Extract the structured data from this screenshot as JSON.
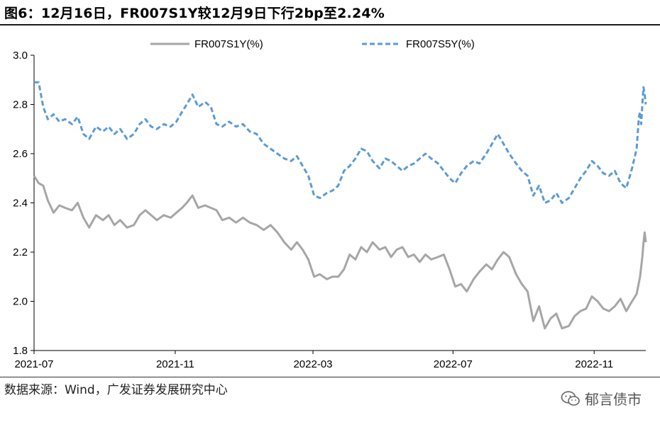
{
  "header": {
    "title": "图6：12月16日，FR007S1Y较12月9日下行2bp至2.24%"
  },
  "footer": {
    "source": "数据来源：Wind，广发证券发展研究中心",
    "watermark_text": "郁言债市",
    "watermark_icon": "wechat-icon"
  },
  "chart_data": {
    "type": "line",
    "title": "图6：12月16日，FR007S1Y较12月9日下行2bp至2.24%",
    "xlabel": "",
    "ylabel": "",
    "x_ticks": [
      "2021-07",
      "2021-11",
      "2022-03",
      "2022-07",
      "2022-11"
    ],
    "y_ticks": [
      "1.8",
      "2.0",
      "2.2",
      "2.4",
      "2.6",
      "2.8",
      "3.0"
    ],
    "ylim": [
      1.8,
      3.0
    ],
    "xlim": [
      "2021-07-01",
      "2022-12-16"
    ],
    "legend_position": "top",
    "grid": false,
    "series": [
      {
        "name": "FR007S1Y(%)",
        "color": "#a6a6a6",
        "style": "solid",
        "points": [
          [
            "2021-07-01",
            2.51
          ],
          [
            "2021-07-05",
            2.48
          ],
          [
            "2021-07-09",
            2.47
          ],
          [
            "2021-07-13",
            2.41
          ],
          [
            "2021-07-18",
            2.36
          ],
          [
            "2021-07-23",
            2.39
          ],
          [
            "2021-07-28",
            2.38
          ],
          [
            "2021-08-03",
            2.37
          ],
          [
            "2021-08-08",
            2.4
          ],
          [
            "2021-08-13",
            2.34
          ],
          [
            "2021-08-18",
            2.3
          ],
          [
            "2021-08-24",
            2.35
          ],
          [
            "2021-08-30",
            2.33
          ],
          [
            "2021-09-04",
            2.35
          ],
          [
            "2021-09-09",
            2.31
          ],
          [
            "2021-09-14",
            2.33
          ],
          [
            "2021-09-20",
            2.3
          ],
          [
            "2021-09-26",
            2.31
          ],
          [
            "2021-10-01",
            2.35
          ],
          [
            "2021-10-06",
            2.37
          ],
          [
            "2021-10-11",
            2.35
          ],
          [
            "2021-10-16",
            2.33
          ],
          [
            "2021-10-22",
            2.35
          ],
          [
            "2021-10-28",
            2.34
          ],
          [
            "2021-11-02",
            2.36
          ],
          [
            "2021-11-07",
            2.38
          ],
          [
            "2021-11-11",
            2.4
          ],
          [
            "2021-11-16",
            2.43
          ],
          [
            "2021-11-21",
            2.38
          ],
          [
            "2021-11-27",
            2.39
          ],
          [
            "2021-12-02",
            2.38
          ],
          [
            "2021-12-07",
            2.37
          ],
          [
            "2021-12-12",
            2.33
          ],
          [
            "2021-12-18",
            2.34
          ],
          [
            "2021-12-24",
            2.32
          ],
          [
            "2021-12-30",
            2.34
          ],
          [
            "2022-01-05",
            2.32
          ],
          [
            "2022-01-11",
            2.31
          ],
          [
            "2022-01-17",
            2.29
          ],
          [
            "2022-01-23",
            2.31
          ],
          [
            "2022-01-29",
            2.28
          ],
          [
            "2022-02-04",
            2.24
          ],
          [
            "2022-02-10",
            2.21
          ],
          [
            "2022-02-15",
            2.24
          ],
          [
            "2022-02-20",
            2.21
          ],
          [
            "2022-02-25",
            2.17
          ],
          [
            "2022-03-02",
            2.1
          ],
          [
            "2022-03-07",
            2.11
          ],
          [
            "2022-03-13",
            2.09
          ],
          [
            "2022-03-18",
            2.1
          ],
          [
            "2022-03-23",
            2.1
          ],
          [
            "2022-03-28",
            2.13
          ],
          [
            "2022-04-02",
            2.19
          ],
          [
            "2022-04-07",
            2.17
          ],
          [
            "2022-04-12",
            2.22
          ],
          [
            "2022-04-17",
            2.2
          ],
          [
            "2022-04-22",
            2.24
          ],
          [
            "2022-04-28",
            2.21
          ],
          [
            "2022-05-03",
            2.22
          ],
          [
            "2022-05-08",
            2.18
          ],
          [
            "2022-05-13",
            2.21
          ],
          [
            "2022-05-18",
            2.22
          ],
          [
            "2022-05-23",
            2.18
          ],
          [
            "2022-05-28",
            2.19
          ],
          [
            "2022-06-02",
            2.16
          ],
          [
            "2022-06-07",
            2.19
          ],
          [
            "2022-06-12",
            2.17
          ],
          [
            "2022-06-18",
            2.18
          ],
          [
            "2022-06-23",
            2.19
          ],
          [
            "2022-06-28",
            2.13
          ],
          [
            "2022-07-03",
            2.06
          ],
          [
            "2022-07-08",
            2.07
          ],
          [
            "2022-07-13",
            2.04
          ],
          [
            "2022-07-19",
            2.09
          ],
          [
            "2022-07-24",
            2.12
          ],
          [
            "2022-07-30",
            2.15
          ],
          [
            "2022-08-04",
            2.13
          ],
          [
            "2022-08-09",
            2.17
          ],
          [
            "2022-08-14",
            2.2
          ],
          [
            "2022-08-19",
            2.18
          ],
          [
            "2022-08-25",
            2.11
          ],
          [
            "2022-08-30",
            2.07
          ],
          [
            "2022-09-04",
            2.04
          ],
          [
            "2022-09-09",
            1.92
          ],
          [
            "2022-09-14",
            1.98
          ],
          [
            "2022-09-19",
            1.89
          ],
          [
            "2022-09-24",
            1.93
          ],
          [
            "2022-09-29",
            1.95
          ],
          [
            "2022-10-04",
            1.89
          ],
          [
            "2022-10-10",
            1.9
          ],
          [
            "2022-10-15",
            1.94
          ],
          [
            "2022-10-20",
            1.96
          ],
          [
            "2022-10-25",
            1.97
          ],
          [
            "2022-10-30",
            2.02
          ],
          [
            "2022-11-04",
            2.0
          ],
          [
            "2022-11-09",
            1.97
          ],
          [
            "2022-11-14",
            1.96
          ],
          [
            "2022-11-19",
            1.98
          ],
          [
            "2022-11-24",
            2.01
          ],
          [
            "2022-11-29",
            1.96
          ],
          [
            "2022-12-04",
            2.0
          ],
          [
            "2022-12-08",
            2.03
          ],
          [
            "2022-12-11",
            2.1
          ],
          [
            "2022-12-13",
            2.18
          ],
          [
            "2022-12-14",
            2.24
          ],
          [
            "2022-12-15",
            2.28
          ],
          [
            "2022-12-16",
            2.24
          ]
        ]
      },
      {
        "name": "FR007S5Y(%)",
        "color": "#5b9bd5",
        "style": "dashed",
        "points": [
          [
            "2021-07-01",
            2.89
          ],
          [
            "2021-07-05",
            2.89
          ],
          [
            "2021-07-09",
            2.79
          ],
          [
            "2021-07-13",
            2.74
          ],
          [
            "2021-07-18",
            2.76
          ],
          [
            "2021-07-23",
            2.73
          ],
          [
            "2021-07-28",
            2.74
          ],
          [
            "2021-08-03",
            2.72
          ],
          [
            "2021-08-08",
            2.75
          ],
          [
            "2021-08-13",
            2.68
          ],
          [
            "2021-08-18",
            2.66
          ],
          [
            "2021-08-24",
            2.71
          ],
          [
            "2021-08-30",
            2.69
          ],
          [
            "2021-09-04",
            2.71
          ],
          [
            "2021-09-09",
            2.68
          ],
          [
            "2021-09-14",
            2.7
          ],
          [
            "2021-09-20",
            2.66
          ],
          [
            "2021-09-26",
            2.68
          ],
          [
            "2021-10-01",
            2.72
          ],
          [
            "2021-10-06",
            2.74
          ],
          [
            "2021-10-11",
            2.71
          ],
          [
            "2021-10-16",
            2.7
          ],
          [
            "2021-10-22",
            2.72
          ],
          [
            "2021-10-28",
            2.71
          ],
          [
            "2021-11-02",
            2.73
          ],
          [
            "2021-11-07",
            2.77
          ],
          [
            "2021-11-11",
            2.8
          ],
          [
            "2021-11-16",
            2.84
          ],
          [
            "2021-11-21",
            2.79
          ],
          [
            "2021-11-27",
            2.81
          ],
          [
            "2021-12-02",
            2.79
          ],
          [
            "2021-12-07",
            2.72
          ],
          [
            "2021-12-12",
            2.71
          ],
          [
            "2021-12-18",
            2.73
          ],
          [
            "2021-12-24",
            2.71
          ],
          [
            "2021-12-30",
            2.72
          ],
          [
            "2022-01-05",
            2.69
          ],
          [
            "2022-01-11",
            2.68
          ],
          [
            "2022-01-17",
            2.64
          ],
          [
            "2022-01-23",
            2.62
          ],
          [
            "2022-01-29",
            2.6
          ],
          [
            "2022-02-04",
            2.58
          ],
          [
            "2022-02-10",
            2.57
          ],
          [
            "2022-02-15",
            2.59
          ],
          [
            "2022-02-20",
            2.55
          ],
          [
            "2022-02-25",
            2.51
          ],
          [
            "2022-03-02",
            2.43
          ],
          [
            "2022-03-07",
            2.42
          ],
          [
            "2022-03-13",
            2.44
          ],
          [
            "2022-03-18",
            2.45
          ],
          [
            "2022-03-23",
            2.47
          ],
          [
            "2022-03-28",
            2.53
          ],
          [
            "2022-04-02",
            2.55
          ],
          [
            "2022-04-07",
            2.58
          ],
          [
            "2022-04-12",
            2.62
          ],
          [
            "2022-04-17",
            2.61
          ],
          [
            "2022-04-22",
            2.57
          ],
          [
            "2022-04-28",
            2.54
          ],
          [
            "2022-05-03",
            2.58
          ],
          [
            "2022-05-08",
            2.57
          ],
          [
            "2022-05-13",
            2.55
          ],
          [
            "2022-05-18",
            2.53
          ],
          [
            "2022-05-23",
            2.55
          ],
          [
            "2022-05-28",
            2.56
          ],
          [
            "2022-06-02",
            2.58
          ],
          [
            "2022-06-07",
            2.6
          ],
          [
            "2022-06-12",
            2.58
          ],
          [
            "2022-06-18",
            2.56
          ],
          [
            "2022-06-23",
            2.53
          ],
          [
            "2022-06-28",
            2.5
          ],
          [
            "2022-07-03",
            2.48
          ],
          [
            "2022-07-08",
            2.52
          ],
          [
            "2022-07-13",
            2.55
          ],
          [
            "2022-07-19",
            2.57
          ],
          [
            "2022-07-24",
            2.56
          ],
          [
            "2022-07-30",
            2.6
          ],
          [
            "2022-08-04",
            2.64
          ],
          [
            "2022-08-09",
            2.68
          ],
          [
            "2022-08-14",
            2.64
          ],
          [
            "2022-08-19",
            2.6
          ],
          [
            "2022-08-25",
            2.56
          ],
          [
            "2022-08-30",
            2.53
          ],
          [
            "2022-09-04",
            2.51
          ],
          [
            "2022-09-09",
            2.43
          ],
          [
            "2022-09-14",
            2.47
          ],
          [
            "2022-09-19",
            2.4
          ],
          [
            "2022-09-24",
            2.41
          ],
          [
            "2022-09-29",
            2.44
          ],
          [
            "2022-10-04",
            2.4
          ],
          [
            "2022-10-10",
            2.42
          ],
          [
            "2022-10-15",
            2.46
          ],
          [
            "2022-10-20",
            2.5
          ],
          [
            "2022-10-25",
            2.53
          ],
          [
            "2022-10-30",
            2.57
          ],
          [
            "2022-11-04",
            2.55
          ],
          [
            "2022-11-09",
            2.52
          ],
          [
            "2022-11-14",
            2.51
          ],
          [
            "2022-11-19",
            2.53
          ],
          [
            "2022-11-24",
            2.48
          ],
          [
            "2022-11-29",
            2.46
          ],
          [
            "2022-12-04",
            2.54
          ],
          [
            "2022-12-08",
            2.62
          ],
          [
            "2022-12-10",
            2.75
          ],
          [
            "2022-12-11",
            2.77
          ],
          [
            "2022-12-12",
            2.72
          ],
          [
            "2022-12-13",
            2.8
          ],
          [
            "2022-12-14",
            2.87
          ],
          [
            "2022-12-15",
            2.84
          ],
          [
            "2022-12-16",
            2.8
          ]
        ]
      }
    ]
  }
}
